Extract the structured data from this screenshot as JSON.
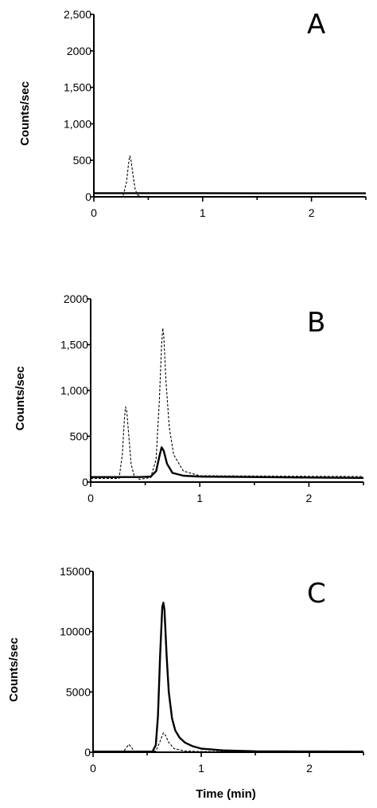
{
  "chart_data": [
    {
      "type": "line",
      "panel": "A",
      "ylabel": "Counts/sec",
      "xlabel": "",
      "xlim": [
        0,
        2.5
      ],
      "ylim": [
        0,
        2500
      ],
      "xticks": [
        0,
        1,
        2
      ],
      "xtick_labels": [
        "0",
        "1",
        "2"
      ],
      "yticks": [
        0,
        500,
        1000,
        1500,
        2000,
        2500
      ],
      "ytick_labels": [
        "0",
        "500",
        "1,000",
        "1,500",
        "2000",
        "2,500"
      ],
      "series": [
        {
          "style": "solid",
          "x": [
            0,
            0.3,
            0.6,
            1.0,
            1.5,
            2.0,
            2.5
          ],
          "y": [
            50,
            50,
            50,
            50,
            48,
            48,
            48
          ]
        },
        {
          "style": "dashed",
          "x": [
            0.27,
            0.3,
            0.32,
            0.33,
            0.34,
            0.36,
            0.38,
            0.4,
            0.42
          ],
          "y": [
            20,
            200,
            470,
            560,
            520,
            300,
            100,
            30,
            10
          ]
        }
      ]
    },
    {
      "type": "line",
      "panel": "B",
      "ylabel": "Counts/sec",
      "xlabel": "",
      "xlim": [
        0,
        2.5
      ],
      "ylim": [
        0,
        2000
      ],
      "xticks": [
        0,
        1,
        2
      ],
      "xtick_labels": [
        "0",
        "1",
        "2"
      ],
      "yticks": [
        0,
        500,
        1000,
        1500,
        2000
      ],
      "ytick_labels": [
        "0",
        "500",
        "1,000",
        "1,500",
        "2000"
      ],
      "series": [
        {
          "style": "solid",
          "x": [
            0,
            0.25,
            0.45,
            0.55,
            0.6,
            0.63,
            0.65,
            0.67,
            0.7,
            0.75,
            0.85,
            1.0,
            1.5,
            2.0,
            2.5
          ],
          "y": [
            55,
            55,
            55,
            60,
            120,
            280,
            380,
            340,
            200,
            100,
            70,
            60,
            55,
            50,
            45
          ]
        },
        {
          "style": "dashed",
          "x": [
            0,
            0.26,
            0.29,
            0.31,
            0.32,
            0.33,
            0.35,
            0.37,
            0.4,
            0.45,
            0.55,
            0.6,
            0.63,
            0.65,
            0.66,
            0.67,
            0.69,
            0.72,
            0.76,
            0.85,
            1.0,
            2.5
          ],
          "y": [
            40,
            40,
            300,
            700,
            820,
            780,
            500,
            200,
            60,
            30,
            50,
            250,
            900,
            1500,
            1680,
            1600,
            1100,
            600,
            300,
            120,
            70,
            60
          ]
        }
      ]
    },
    {
      "type": "line",
      "panel": "C",
      "ylabel": "Counts/sec",
      "xlabel": "Time (min)",
      "xlim": [
        0,
        2.5
      ],
      "ylim": [
        0,
        15000
      ],
      "xticks": [
        0,
        1,
        2
      ],
      "xtick_labels": [
        "0",
        "1",
        "2"
      ],
      "yticks": [
        0,
        5000,
        10000,
        15000
      ],
      "ytick_labels": [
        "0",
        "5000",
        "10000",
        "15000"
      ],
      "series": [
        {
          "style": "solid",
          "x": [
            0,
            0.3,
            0.55,
            0.58,
            0.6,
            0.62,
            0.64,
            0.65,
            0.66,
            0.68,
            0.7,
            0.73,
            0.76,
            0.8,
            0.85,
            0.92,
            1.0,
            1.2,
            1.5,
            2.0,
            2.5
          ],
          "y": [
            50,
            50,
            60,
            600,
            3000,
            8000,
            12000,
            12400,
            11800,
            8000,
            5000,
            2800,
            1800,
            1200,
            800,
            500,
            300,
            150,
            80,
            60,
            50
          ]
        },
        {
          "style": "dashed",
          "x": [
            0,
            0.28,
            0.31,
            0.33,
            0.35,
            0.38,
            0.45,
            0.58,
            0.62,
            0.65,
            0.67,
            0.7,
            0.75,
            0.85,
            1.0,
            2.5
          ],
          "y": [
            30,
            30,
            400,
            650,
            450,
            80,
            30,
            100,
            900,
            1600,
            1400,
            800,
            300,
            100,
            50,
            30
          ]
        }
      ]
    }
  ]
}
